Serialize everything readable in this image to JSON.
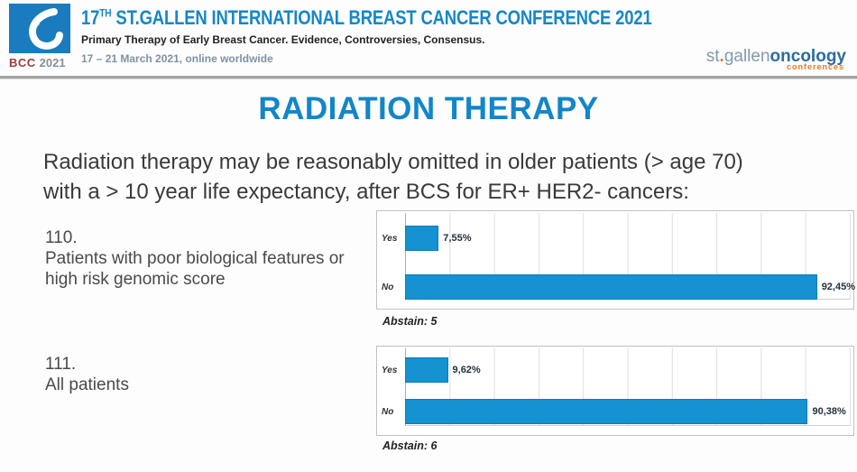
{
  "colors": {
    "brand_blue": "#1587c8",
    "title_blue": "#1286c9",
    "bar_blue": "#1492d2",
    "accent_orange": "#e87722",
    "bcc_red": "#9e3b3b"
  },
  "header": {
    "logo_text_bcc": "BCC",
    "logo_text_year": "2021",
    "title_num": "17",
    "title_sup": "TH",
    "title_rest": " ST.GALLEN INTERNATIONAL BREAST CANCER CONFERENCE 2021",
    "subtitle": "Primary Therapy of Early Breast Cancer. Evidence, Controversies, Consensus.",
    "dates": "17 – 21 March 2021, online worldwide",
    "partner_logo": {
      "part1": "st",
      "dot": ".",
      "part2": "gallen",
      "part3": "oncology",
      "part4": "conferences"
    }
  },
  "slide": {
    "title": "RADIATION THERAPY",
    "question_line1": "Radiation therapy may be reasonably omitted in older patients (> age 70)",
    "question_line2": "with a > 10 year life expectancy, after BCS for ER+ HER2- cancers:"
  },
  "polls": [
    {
      "number": "110.",
      "label_line1": "Patients with poor biological features or",
      "label_line2": "high risk genomic score",
      "abstain": "Abstain: 5"
    },
    {
      "number": "111.",
      "label_line1": "All patients",
      "label_line2": "",
      "abstain": "Abstain: 6"
    }
  ],
  "chart_data": [
    {
      "type": "bar",
      "orientation": "horizontal",
      "question": "110. Patients with poor biological features or high risk genomic score",
      "categories": [
        "Yes",
        "No"
      ],
      "values": [
        7.55,
        92.45
      ],
      "value_labels": [
        "7,55%",
        "92,45%"
      ],
      "abstain": 5,
      "xlim": [
        0,
        100
      ],
      "gridline_step_pct": 10,
      "grid": true,
      "legend": "none",
      "bar_color": "#1492d2"
    },
    {
      "type": "bar",
      "orientation": "horizontal",
      "question": "111. All patients",
      "categories": [
        "Yes",
        "No"
      ],
      "values": [
        9.62,
        90.38
      ],
      "value_labels": [
        "9,62%",
        "90,38%"
      ],
      "abstain": 6,
      "xlim": [
        0,
        100
      ],
      "gridline_step_pct": 10,
      "grid": true,
      "legend": "none",
      "bar_color": "#1492d2"
    }
  ]
}
